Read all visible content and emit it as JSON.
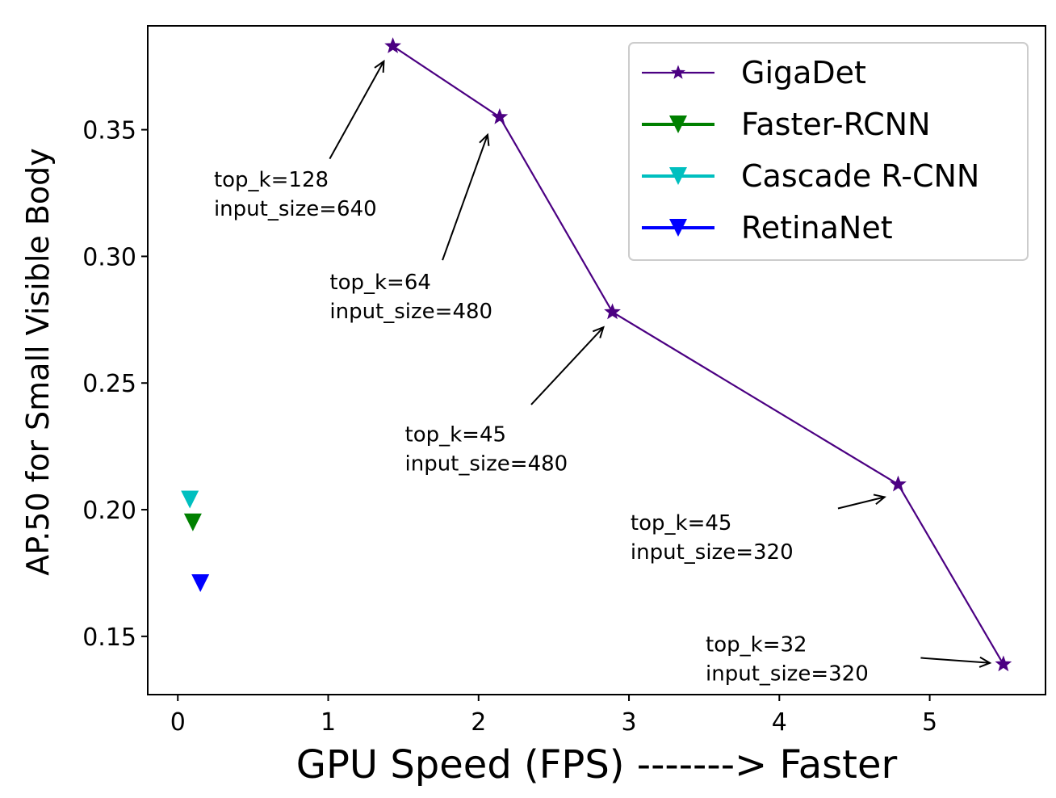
{
  "chart_data": {
    "type": "line",
    "xlabel": "GPU Speed (FPS)  ------->  Faster",
    "ylabel": "AP.50 for Small Visible Body",
    "xlim": [
      -0.2,
      5.77
    ],
    "ylim": [
      0.127,
      0.391
    ],
    "xticks": [
      0,
      1,
      2,
      3,
      4,
      5
    ],
    "yticks": [
      0.15,
      0.2,
      0.25,
      0.3,
      0.35
    ],
    "ytick_labels": [
      "0.15",
      "0.20",
      "0.25",
      "0.30",
      "0.35"
    ],
    "grid": false,
    "legend_position": "top-right",
    "series": [
      {
        "name": "GigaDet",
        "marker": "star",
        "color": "#4b0082",
        "points": [
          {
            "x": 1.43,
            "y": 0.383
          },
          {
            "x": 2.14,
            "y": 0.355
          },
          {
            "x": 2.89,
            "y": 0.278
          },
          {
            "x": 4.79,
            "y": 0.21
          },
          {
            "x": 5.49,
            "y": 0.139
          }
        ]
      },
      {
        "name": "Faster-RCNN",
        "marker": "triangle-down",
        "color": "#008000",
        "points": [
          {
            "x": 0.1,
            "y": 0.195
          }
        ]
      },
      {
        "name": "Cascade R-CNN",
        "marker": "triangle-down",
        "color": "#00bfbf",
        "points": [
          {
            "x": 0.08,
            "y": 0.204
          }
        ]
      },
      {
        "name": "RetinaNet",
        "marker": "triangle-down",
        "color": "#0000ff",
        "points": [
          {
            "x": 0.15,
            "y": 0.171
          }
        ]
      }
    ],
    "annotations": [
      {
        "lines": [
          "top_k=128",
          "input_size=640"
        ],
        "text_x": 0.24,
        "text_y": 0.3275,
        "target_x": 1.37,
        "target_y": 0.377
      },
      {
        "lines": [
          "top_k=64",
          "input_size=480"
        ],
        "text_x": 1.01,
        "text_y": 0.287,
        "target_x": 2.06,
        "target_y": 0.348
      },
      {
        "lines": [
          "top_k=45",
          "input_size=480"
        ],
        "text_x": 1.51,
        "text_y": 0.227,
        "target_x": 2.83,
        "target_y": 0.272
      },
      {
        "lines": [
          "top_k=45",
          "input_size=320"
        ],
        "text_x": 3.01,
        "text_y": 0.192,
        "target_x": 4.7,
        "target_y": 0.205
      },
      {
        "lines": [
          "top_k=32",
          "input_size=320"
        ],
        "text_x": 3.51,
        "text_y": 0.144,
        "target_x": 5.4,
        "target_y": 0.1395
      }
    ],
    "arrow_tails": [
      {
        "x": 1.01,
        "y": 0.3385
      },
      {
        "x": 1.76,
        "y": 0.2985
      },
      {
        "x": 2.35,
        "y": 0.2415
      },
      {
        "x": 4.39,
        "y": 0.2005
      },
      {
        "x": 4.94,
        "y": 0.1415
      }
    ]
  }
}
